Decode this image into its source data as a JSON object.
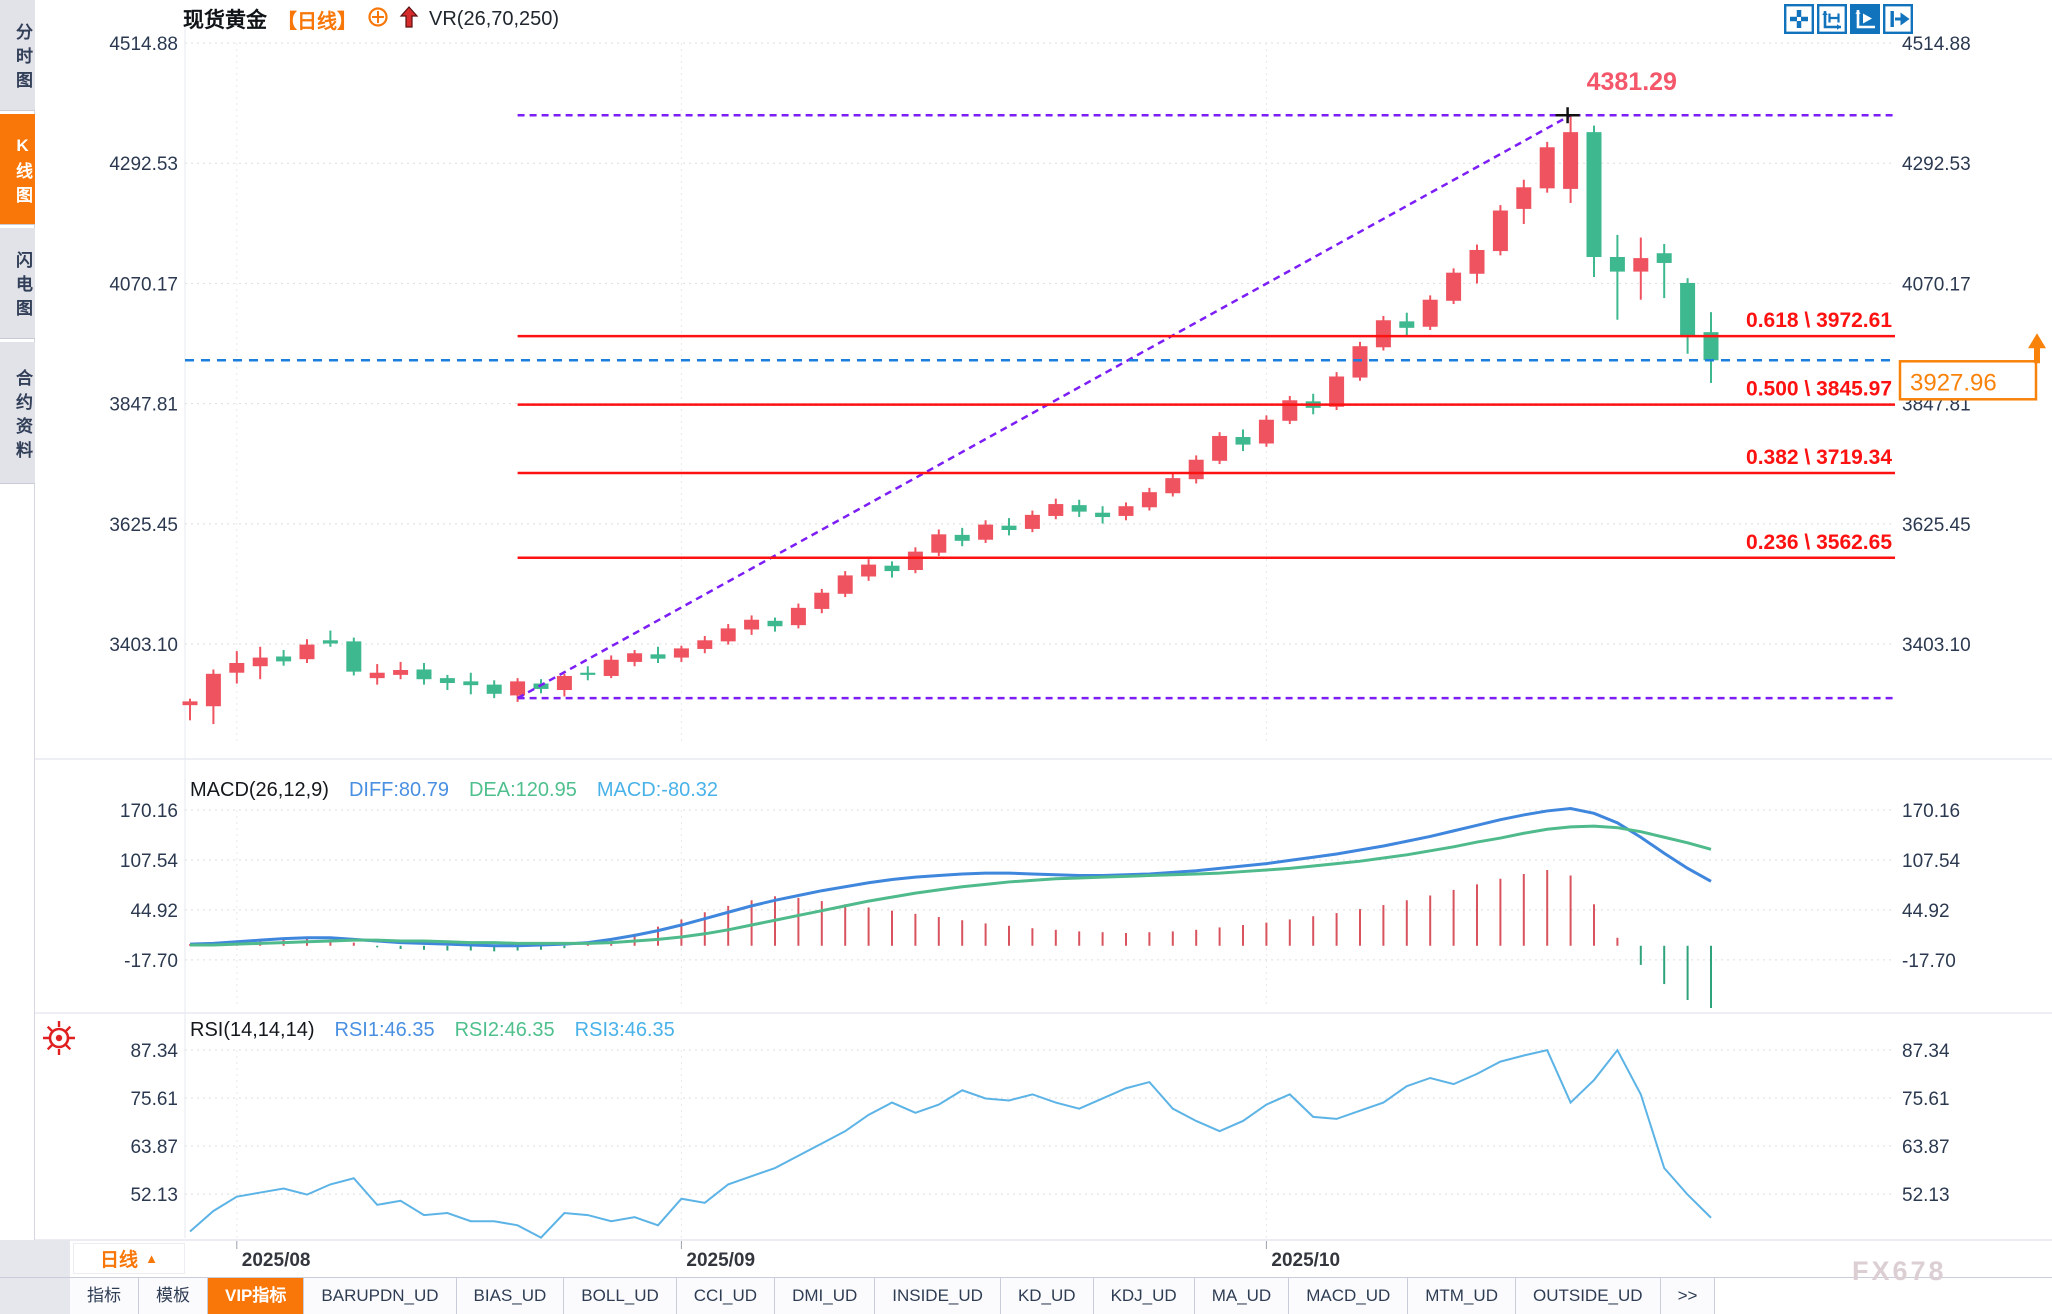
{
  "sidebar": {
    "items": [
      {
        "label": "分时图",
        "active": false
      },
      {
        "label": "K线图",
        "active": true
      },
      {
        "label": "闪电图",
        "active": false
      },
      {
        "label": "合约资料",
        "active": false
      }
    ]
  },
  "header": {
    "symbol": "现货黄金",
    "period_tag": "【日线】",
    "vr_label": "VR(26,70,250)"
  },
  "toolbar": {
    "icons": [
      "crosshair",
      "fit-axis",
      "auto-scroll",
      "page-right"
    ]
  },
  "macd_legend": {
    "title": "MACD(26,12,9)",
    "diff": "DIFF:80.79",
    "dea": "DEA:120.95",
    "macd": "MACD:-80.32"
  },
  "rsi_legend": {
    "title": "RSI(14,14,14)",
    "rsi1": "RSI1:46.35",
    "rsi2": "RSI2:46.35",
    "rsi3": "RSI3:46.35"
  },
  "bottom": {
    "period_button": "日线",
    "period_arrow": "▲",
    "active_tab": "VIP指标",
    "tabs": [
      "指标",
      "模板",
      "VIP指标",
      "BARUPDN_UD",
      "BIAS_UD",
      "BOLL_UD",
      "CCI_UD",
      "DMI_UD",
      "INSIDE_UD",
      "KD_UD",
      "KDJ_UD",
      "MA_UD",
      "MACD_UD",
      "MTM_UD",
      "OUTSIDE_UD",
      ">>"
    ],
    "watermark": "FX678"
  },
  "chart_data": {
    "type": "candlestick+macd+rsi",
    "title": "现货黄金 日线",
    "x_axis": {
      "tick_labels": [
        "2025/08",
        "2025/09",
        "2025/10"
      ],
      "tick_indices": [
        2,
        21,
        46
      ]
    },
    "main": {
      "ticks": [
        4514.88,
        4292.53,
        4070.17,
        3847.81,
        3625.45,
        3403.1
      ],
      "range_top": 4514.88,
      "range_bottom": 3216.3,
      "fib_levels": [
        {
          "label": "0.618 \\ 3972.61",
          "price": 3972.61
        },
        {
          "label": "0.500 \\ 3845.97",
          "price": 3845.97
        },
        {
          "label": "0.382 \\ 3719.34",
          "price": 3719.34
        },
        {
          "label": "0.236 \\ 3562.65",
          "price": 3562.65
        }
      ],
      "peak": {
        "label": "4381.29",
        "price": 4381.29,
        "candle_index": 59
      },
      "trend_low": {
        "price": 3303,
        "candle_index": 14
      },
      "current_price": {
        "label": "3927.96",
        "value": 3927.96
      },
      "candles": [
        [
          3290,
          3302,
          3262,
          3297
        ],
        [
          3288,
          3356,
          3255,
          3348
        ],
        [
          3350,
          3390,
          3330,
          3368
        ],
        [
          3362,
          3398,
          3338,
          3378
        ],
        [
          3380,
          3392,
          3363,
          3371
        ],
        [
          3375,
          3412,
          3368,
          3402
        ],
        [
          3410,
          3428,
          3398,
          3404
        ],
        [
          3408,
          3415,
          3345,
          3352
        ],
        [
          3340,
          3366,
          3328,
          3350
        ],
        [
          3346,
          3370,
          3338,
          3355
        ],
        [
          3356,
          3368,
          3328,
          3338
        ],
        [
          3340,
          3346,
          3318,
          3331
        ],
        [
          3334,
          3350,
          3310,
          3327
        ],
        [
          3328,
          3336,
          3303,
          3311
        ],
        [
          3308,
          3340,
          3296,
          3334
        ],
        [
          3330,
          3338,
          3312,
          3320
        ],
        [
          3318,
          3348,
          3306,
          3344
        ],
        [
          3350,
          3362,
          3336,
          3346
        ],
        [
          3344,
          3382,
          3340,
          3374
        ],
        [
          3370,
          3392,
          3362,
          3386
        ],
        [
          3384,
          3398,
          3368,
          3376
        ],
        [
          3378,
          3400,
          3370,
          3395
        ],
        [
          3394,
          3418,
          3386,
          3410
        ],
        [
          3408,
          3440,
          3402,
          3432
        ],
        [
          3430,
          3456,
          3420,
          3448
        ],
        [
          3446,
          3452,
          3426,
          3436
        ],
        [
          3438,
          3478,
          3432,
          3470
        ],
        [
          3468,
          3505,
          3460,
          3498
        ],
        [
          3496,
          3538,
          3490,
          3530
        ],
        [
          3528,
          3560,
          3520,
          3550
        ],
        [
          3548,
          3556,
          3526,
          3538
        ],
        [
          3540,
          3582,
          3534,
          3574
        ],
        [
          3572,
          3615,
          3566,
          3606
        ],
        [
          3605,
          3618,
          3584,
          3594
        ],
        [
          3596,
          3632,
          3590,
          3624
        ],
        [
          3622,
          3636,
          3604,
          3614
        ],
        [
          3616,
          3650,
          3610,
          3642
        ],
        [
          3640,
          3672,
          3634,
          3662
        ],
        [
          3660,
          3670,
          3638,
          3648
        ],
        [
          3646,
          3658,
          3626,
          3638
        ],
        [
          3640,
          3665,
          3632,
          3658
        ],
        [
          3656,
          3692,
          3650,
          3684
        ],
        [
          3682,
          3718,
          3676,
          3710
        ],
        [
          3708,
          3752,
          3700,
          3744
        ],
        [
          3742,
          3795,
          3736,
          3788
        ],
        [
          3786,
          3800,
          3760,
          3772
        ],
        [
          3774,
          3826,
          3768,
          3818
        ],
        [
          3816,
          3862,
          3810,
          3854
        ],
        [
          3852,
          3866,
          3828,
          3840
        ],
        [
          3842,
          3906,
          3836,
          3898
        ],
        [
          3896,
          3962,
          3890,
          3954
        ],
        [
          3952,
          4010,
          3946,
          4002
        ],
        [
          4000,
          4016,
          3974,
          3988
        ],
        [
          3990,
          4048,
          3984,
          4040
        ],
        [
          4038,
          4098,
          4032,
          4090
        ],
        [
          4088,
          4142,
          4070,
          4132
        ],
        [
          4130,
          4215,
          4122,
          4205
        ],
        [
          4208,
          4262,
          4180,
          4248
        ],
        [
          4246,
          4332,
          4238,
          4322
        ],
        [
          4245,
          4381.29,
          4219,
          4350
        ],
        [
          4350,
          4362,
          4082,
          4119
        ],
        [
          4119,
          4160,
          4003,
          4092
        ],
        [
          4092,
          4155,
          4040,
          4117
        ],
        [
          4126,
          4143,
          4043,
          4108
        ],
        [
          4071,
          4080,
          3940,
          3971
        ],
        [
          3980,
          4017,
          3886,
          3927.96
        ]
      ]
    },
    "macd": {
      "params": "(26,12,9)",
      "diff_last": 80.79,
      "dea_last": 120.95,
      "macd_last": -80.32,
      "ticks": [
        170.16,
        107.54,
        44.92,
        -17.7
      ],
      "range_top": 170.16,
      "range_bottom": -78,
      "diff": [
        2,
        3,
        5,
        7,
        9,
        10,
        10,
        8,
        6,
        4,
        3,
        2,
        1,
        0,
        0,
        1,
        2,
        4,
        8,
        13,
        19,
        26,
        34,
        42,
        50,
        57,
        63,
        69,
        74,
        79,
        83,
        86,
        88,
        90,
        91,
        91,
        90,
        89,
        88,
        88,
        89,
        90,
        92,
        94,
        97,
        100,
        103,
        107,
        111,
        115,
        120,
        125,
        131,
        137,
        144,
        151,
        158,
        164,
        169,
        172,
        166,
        154,
        136,
        116,
        97,
        80.79
      ],
      "dea": [
        1,
        1,
        2,
        3,
        4,
        5,
        6,
        7,
        7,
        6,
        6,
        5,
        4,
        4,
        3,
        3,
        3,
        3,
        4,
        6,
        8,
        11,
        15,
        20,
        26,
        32,
        38,
        44,
        50,
        56,
        61,
        66,
        70,
        74,
        77,
        80,
        82,
        84,
        85,
        86,
        87,
        88,
        89,
        90,
        91,
        93,
        95,
        97,
        100,
        103,
        106,
        110,
        114,
        119,
        124,
        130,
        135,
        141,
        146,
        149,
        150,
        148,
        143,
        136,
        129,
        120.95
      ],
      "hist": [
        2,
        4,
        6,
        8,
        10,
        10,
        8,
        4,
        -2,
        -4,
        -5,
        -6,
        -6,
        -7,
        -6,
        -5,
        -3,
        3,
        8,
        15,
        24,
        33,
        42,
        50,
        57,
        62,
        60,
        56,
        52,
        48,
        44,
        40,
        36,
        32,
        28,
        25,
        22,
        20,
        18,
        17,
        16,
        17,
        18,
        20,
        23,
        26,
        29,
        33,
        37,
        41,
        46,
        51,
        57,
        63,
        70,
        77,
        84,
        90,
        95,
        88,
        52,
        10,
        -24,
        -48,
        -68,
        -80.32
      ]
    },
    "rsi": {
      "params": "(14,14,14)",
      "rsi1_last": 46.35,
      "rsi2_last": 46.35,
      "rsi3_last": 46.35,
      "ticks": [
        87.34,
        75.61,
        63.87,
        52.13
      ],
      "range_top": 87.34,
      "range_bottom": 41.4,
      "values": [
        43,
        48,
        51.5,
        52.5,
        53.5,
        52,
        54.5,
        56,
        49.5,
        50.5,
        47,
        47.5,
        45.5,
        45.5,
        44.5,
        41.5,
        47.5,
        47,
        45.5,
        46.5,
        44.5,
        51,
        50,
        54.5,
        56.5,
        58.5,
        61.5,
        64.5,
        67.5,
        71.5,
        74.5,
        72,
        74,
        77.5,
        75.5,
        75,
        76.5,
        74.5,
        73,
        75.5,
        78,
        79.5,
        73,
        70,
        67.5,
        70,
        74,
        76.5,
        71,
        70.5,
        72.5,
        74.5,
        78.5,
        80.5,
        79,
        81.5,
        84.5,
        86,
        87.3,
        74.5,
        80,
        87.3,
        76.5,
        58.5,
        52,
        46.35
      ]
    },
    "colors": {
      "up": "#ef5360",
      "down": "#3eb88e",
      "fib": "#fe1111",
      "trend": "#7c1ef5",
      "current": "#1b7fe0",
      "diff": "#3f86dd",
      "dea": "#4fba8b",
      "hist_pos": "#d9535f",
      "hist_neg": "#2fa47c",
      "rsi": "#5cb3e6",
      "accent": "#f87708",
      "grid": "#dedede"
    }
  }
}
